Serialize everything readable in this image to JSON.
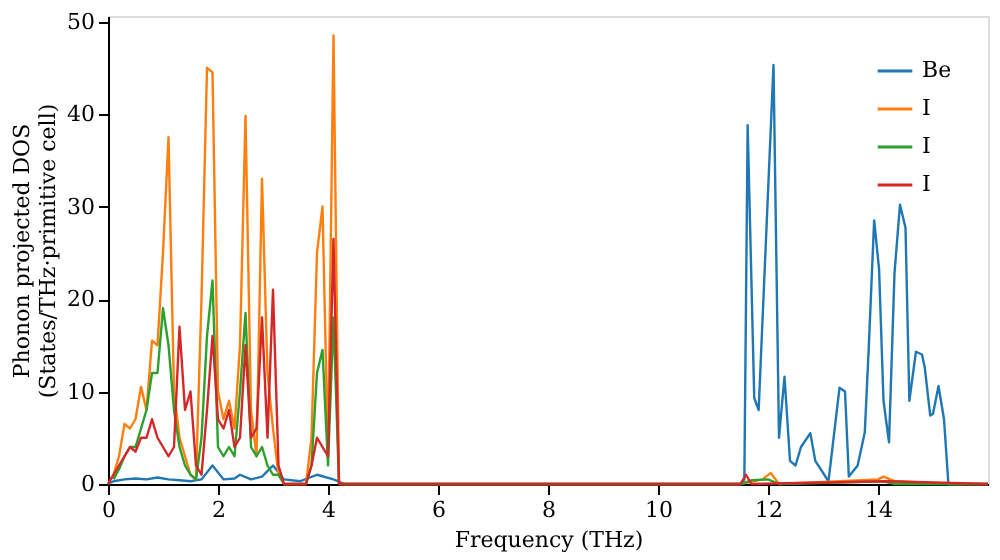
{
  "chart_data": {
    "type": "line",
    "xlabel": "Frequency (THz)",
    "ylabel": "Phonon projected DOS\n(States/THz·primitive cell)",
    "xlim": [
      0,
      16
    ],
    "ylim": [
      0,
      50.6
    ],
    "xticks": [
      0,
      2,
      4,
      6,
      8,
      10,
      12,
      14
    ],
    "yticks": [
      0,
      10,
      20,
      30,
      40,
      50
    ],
    "grid": false,
    "legend": "top right",
    "line_style": "solid",
    "marker": "none",
    "series": [
      {
        "name": "Be",
        "color": "#1f77b4",
        "x": [
          0,
          0.1,
          0.3,
          0.5,
          0.7,
          0.9,
          1.1,
          1.3,
          1.5,
          1.7,
          1.9,
          2.1,
          2.3,
          2.4,
          2.6,
          2.8,
          3.0,
          3.2,
          3.5,
          3.8,
          4.1,
          4.3,
          11.5,
          11.57,
          11.63,
          11.75,
          11.83,
          12.1,
          12.2,
          12.3,
          12.4,
          12.5,
          12.6,
          12.77,
          12.86,
          13.1,
          13.3,
          13.4,
          13.47,
          13.63,
          13.76,
          13.83,
          13.93,
          14.02,
          14.1,
          14.2,
          14.3,
          14.4,
          14.5,
          14.57,
          14.69,
          14.8,
          14.85,
          14.95,
          15.0,
          15.1,
          15.2,
          15.28,
          15.4,
          16
        ],
        "values": [
          0,
          0.3,
          0.5,
          0.6,
          0.5,
          0.7,
          0.5,
          0.4,
          0.3,
          0.5,
          2,
          0.5,
          0.6,
          1,
          0.5,
          0.8,
          2,
          0.5,
          0.3,
          1,
          0.5,
          0,
          0,
          0.5,
          38.8,
          9.3,
          8,
          45.3,
          5,
          11.6,
          2.5,
          2,
          4,
          5.5,
          2.5,
          0.3,
          10.4,
          10,
          0.8,
          2,
          5.6,
          14.5,
          28.5,
          23.2,
          9,
          4.5,
          22.8,
          30.2,
          27.7,
          9,
          14.3,
          14,
          12.6,
          7.4,
          7.6,
          10.6,
          7,
          0,
          0,
          0
        ]
      },
      {
        "name": "I",
        "color": "#ff7f0e",
        "x": [
          0,
          0.1,
          0.2,
          0.3,
          0.4,
          0.5,
          0.6,
          0.7,
          0.8,
          0.9,
          1.0,
          1.1,
          1.2,
          1.3,
          1.4,
          1.5,
          1.6,
          1.7,
          1.8,
          1.9,
          2.0,
          2.1,
          2.2,
          2.3,
          2.4,
          2.5,
          2.6,
          2.7,
          2.8,
          2.9,
          3.0,
          3.1,
          3.2,
          3.6,
          3.7,
          3.8,
          3.9,
          4.0,
          4.1,
          4.2,
          11.5,
          11.9,
          12.05,
          12.2,
          14.0,
          14.1,
          14.3,
          15.3,
          16
        ],
        "values": [
          0,
          1,
          3,
          6.5,
          6,
          7,
          10.5,
          8,
          15.5,
          15,
          25,
          37.5,
          10,
          5,
          3,
          1,
          0.5,
          20,
          45,
          44.5,
          10,
          7,
          9,
          6,
          15,
          39.8,
          8,
          3,
          33,
          12,
          6,
          1,
          0,
          0,
          5,
          25,
          30,
          3,
          48.5,
          0,
          0,
          0.5,
          1.2,
          0,
          0.5,
          0.8,
          0.3,
          0,
          0
        ]
      },
      {
        "name": "I",
        "color": "#2ca02c",
        "x": [
          0.1,
          0.2,
          0.3,
          0.4,
          0.5,
          0.6,
          0.7,
          0.8,
          0.9,
          1.0,
          1.1,
          1.2,
          1.3,
          1.4,
          1.5,
          1.6,
          1.7,
          1.8,
          1.9,
          2.0,
          2.1,
          2.2,
          2.3,
          2.4,
          2.5,
          2.6,
          2.7,
          2.8,
          2.9,
          3.0,
          3.1,
          3.2,
          3.6,
          3.7,
          3.8,
          3.9,
          4.0,
          4.1,
          4.2,
          11.5,
          11.7,
          12.0,
          12.2,
          14.1,
          14.3,
          16
        ],
        "values": [
          0.5,
          1.6,
          3,
          4,
          4,
          6,
          8,
          12,
          12,
          19,
          15,
          8,
          4,
          2,
          1,
          0.5,
          5,
          16,
          22,
          4,
          3,
          4,
          3,
          10,
          18.5,
          4,
          3,
          4,
          2,
          1,
          1,
          0,
          0,
          2,
          12,
          14.5,
          2,
          18,
          0,
          0,
          0.4,
          0.5,
          0,
          0.3,
          0,
          0
        ]
      },
      {
        "name": "I",
        "color": "#d62728",
        "x": [
          0,
          0.1,
          0.2,
          0.3,
          0.4,
          0.5,
          0.6,
          0.7,
          0.8,
          0.9,
          1.0,
          1.1,
          1.2,
          1.3,
          1.4,
          1.5,
          1.6,
          1.7,
          1.8,
          1.9,
          2.0,
          2.1,
          2.2,
          2.3,
          2.4,
          2.5,
          2.6,
          2.7,
          2.8,
          2.9,
          3.0,
          3.1,
          3.2,
          3.6,
          3.7,
          3.8,
          3.9,
          4.0,
          4.1,
          4.2,
          11.5,
          11.6,
          11.7,
          14.2,
          16
        ],
        "values": [
          0,
          1,
          2,
          3,
          4,
          3.5,
          5,
          5,
          7,
          5,
          4,
          3,
          4,
          17,
          8,
          10,
          2,
          1,
          8,
          16,
          7,
          6,
          8,
          4,
          5,
          15,
          5,
          6,
          18,
          5,
          21,
          2,
          0,
          0,
          2,
          5,
          4,
          3,
          26.5,
          0,
          0,
          1,
          0,
          0.3,
          0
        ]
      }
    ]
  }
}
